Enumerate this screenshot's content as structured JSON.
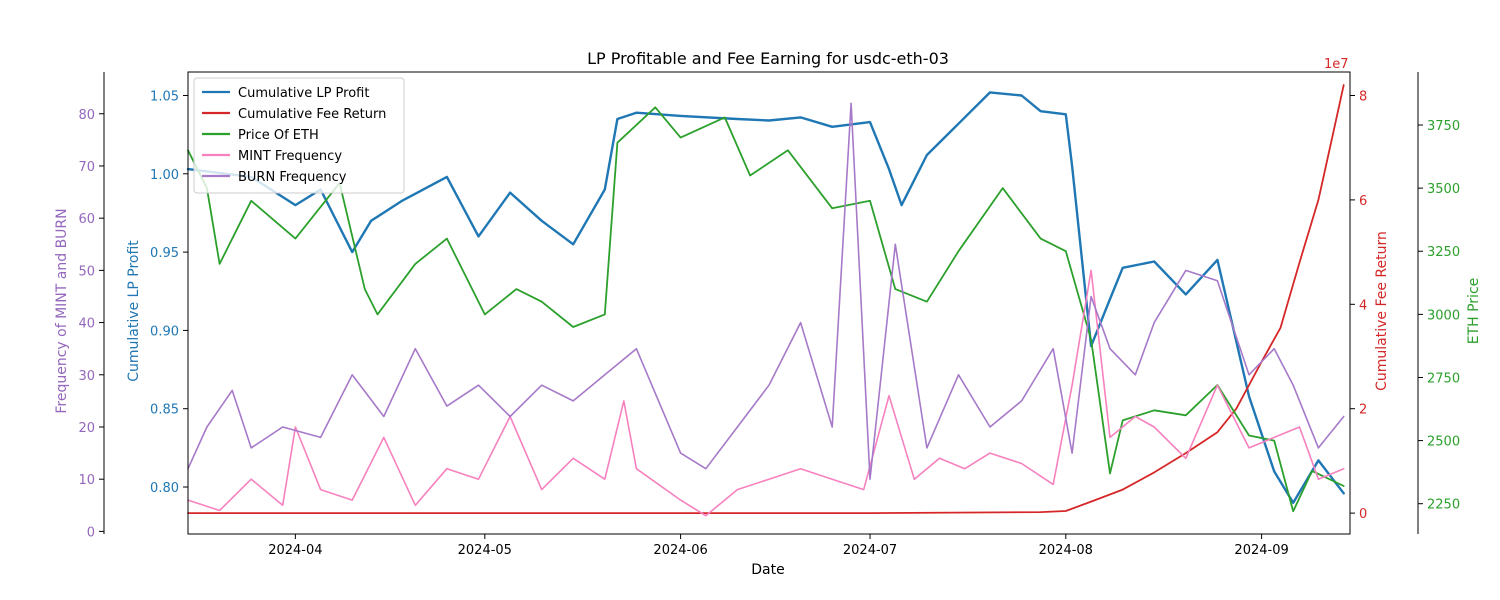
{
  "chart_data": {
    "type": "line",
    "title": "LP Profitable and Fee Earning for usdc-eth-03",
    "xlabel": "Date",
    "x_ticks": [
      "2024-04",
      "2024-05",
      "2024-06",
      "2024-07",
      "2024-08",
      "2024-09"
    ],
    "x_range": [
      "2024-03-15",
      "2024-09-15"
    ],
    "axes": {
      "lp": {
        "label": "Cumulative LP Profit",
        "color": "#1f77b4",
        "range": [
          0.77,
          1.065
        ],
        "ticks": [
          "0.80",
          "0.85",
          "0.90",
          "0.95",
          "1.00",
          "1.05"
        ]
      },
      "freq": {
        "label": "Frequency of MINT and BURN",
        "color": "#9467bd",
        "range": [
          -0.5,
          88
        ],
        "ticks": [
          "0",
          "10",
          "20",
          "30",
          "40",
          "50",
          "60",
          "70",
          "80"
        ]
      },
      "fee": {
        "label": "Cumulative Fee Return",
        "color": "#d62728",
        "range": [
          -4000000,
          84500000
        ],
        "ticks": [
          "0",
          "2",
          "4",
          "6",
          "8"
        ],
        "offset_label": "1e7"
      },
      "eth": {
        "label": "ETH Price",
        "color": "#2ca02c",
        "range": [
          2130,
          3960
        ],
        "ticks": [
          "2250",
          "2500",
          "2750",
          "3000",
          "3250",
          "3500",
          "3750"
        ]
      }
    },
    "legend_position": "upper left",
    "series": [
      {
        "name": "Cumulative LP Profit",
        "color": "#1f77b4",
        "axis": "lp",
        "x": [
          "2024-03-15",
          "2024-03-25",
          "2024-04-01",
          "2024-04-05",
          "2024-04-10",
          "2024-04-13",
          "2024-04-18",
          "2024-04-25",
          "2024-04-30",
          "2024-05-05",
          "2024-05-10",
          "2024-05-15",
          "2024-05-20",
          "2024-05-22",
          "2024-05-25",
          "2024-06-01",
          "2024-06-10",
          "2024-06-15",
          "2024-06-20",
          "2024-06-25",
          "2024-07-01",
          "2024-07-04",
          "2024-07-06",
          "2024-07-10",
          "2024-07-15",
          "2024-07-20",
          "2024-07-25",
          "2024-07-28",
          "2024-08-01",
          "2024-08-02",
          "2024-08-05",
          "2024-08-08",
          "2024-08-10",
          "2024-08-15",
          "2024-08-20",
          "2024-08-25",
          "2024-08-30",
          "2024-09-03",
          "2024-09-06",
          "2024-09-10",
          "2024-09-14"
        ],
        "values": [
          1.003,
          0.998,
          0.98,
          0.99,
          0.95,
          0.97,
          0.983,
          0.998,
          0.96,
          0.988,
          0.97,
          0.955,
          0.99,
          1.035,
          1.039,
          1.037,
          1.035,
          1.034,
          1.036,
          1.03,
          1.033,
          1.003,
          0.98,
          1.012,
          1.032,
          1.052,
          1.05,
          1.04,
          1.038,
          1.005,
          0.89,
          0.92,
          0.94,
          0.944,
          0.923,
          0.945,
          0.858,
          0.81,
          0.79,
          0.817,
          0.796
        ]
      },
      {
        "name": "Cumulative Fee Return",
        "color": "#d62728",
        "axis": "fee",
        "x": [
          "2024-03-15",
          "2024-07-01",
          "2024-07-28",
          "2024-08-01",
          "2024-08-05",
          "2024-08-10",
          "2024-08-15",
          "2024-08-20",
          "2024-08-25",
          "2024-08-28",
          "2024-09-01",
          "2024-09-04",
          "2024-09-07",
          "2024-09-10",
          "2024-09-12",
          "2024-09-14"
        ],
        "values": [
          0,
          0,
          200000,
          400000,
          2200000,
          4500000,
          7800000,
          11500000,
          15500000,
          20000000,
          29000000,
          35500000,
          48000000,
          60000000,
          71000000,
          82000000
        ]
      },
      {
        "name": "Price Of ETH",
        "color": "#2ca02c",
        "axis": "eth",
        "x": [
          "2024-03-15",
          "2024-03-18",
          "2024-03-20",
          "2024-03-25",
          "2024-04-01",
          "2024-04-08",
          "2024-04-12",
          "2024-04-14",
          "2024-04-20",
          "2024-04-25",
          "2024-05-01",
          "2024-05-06",
          "2024-05-10",
          "2024-05-15",
          "2024-05-20",
          "2024-05-22",
          "2024-05-28",
          "2024-06-01",
          "2024-06-08",
          "2024-06-12",
          "2024-06-18",
          "2024-06-25",
          "2024-07-01",
          "2024-07-05",
          "2024-07-10",
          "2024-07-15",
          "2024-07-22",
          "2024-07-28",
          "2024-08-01",
          "2024-08-05",
          "2024-08-08",
          "2024-08-10",
          "2024-08-15",
          "2024-08-20",
          "2024-08-25",
          "2024-08-30",
          "2024-09-03",
          "2024-09-06",
          "2024-09-09",
          "2024-09-14"
        ],
        "values": [
          3650,
          3500,
          3200,
          3450,
          3300,
          3520,
          3100,
          3000,
          3200,
          3300,
          3000,
          3100,
          3050,
          2950,
          3000,
          3680,
          3820,
          3700,
          3780,
          3550,
          3650,
          3420,
          3450,
          3100,
          3050,
          3250,
          3500,
          3300,
          3250,
          2900,
          2370,
          2580,
          2620,
          2600,
          2720,
          2520,
          2500,
          2220,
          2380,
          2320
        ]
      },
      {
        "name": "MINT Frequency",
        "color": "#f781bf",
        "axis": "freq",
        "x": [
          "2024-03-15",
          "2024-03-20",
          "2024-03-25",
          "2024-03-30",
          "2024-04-01",
          "2024-04-05",
          "2024-04-10",
          "2024-04-15",
          "2024-04-20",
          "2024-04-25",
          "2024-04-30",
          "2024-05-05",
          "2024-05-10",
          "2024-05-15",
          "2024-05-20",
          "2024-05-23",
          "2024-05-25",
          "2024-06-01",
          "2024-06-05",
          "2024-06-10",
          "2024-06-15",
          "2024-06-20",
          "2024-06-25",
          "2024-06-30",
          "2024-07-04",
          "2024-07-08",
          "2024-07-12",
          "2024-07-16",
          "2024-07-20",
          "2024-07-25",
          "2024-07-30",
          "2024-08-02",
          "2024-08-05",
          "2024-08-08",
          "2024-08-12",
          "2024-08-15",
          "2024-08-20",
          "2024-08-25",
          "2024-08-30",
          "2024-09-03",
          "2024-09-07",
          "2024-09-10",
          "2024-09-14"
        ],
        "values": [
          6,
          4,
          10,
          5,
          20,
          8,
          6,
          18,
          5,
          12,
          10,
          22,
          8,
          14,
          10,
          25,
          12,
          6,
          3,
          8,
          10,
          12,
          10,
          8,
          26,
          10,
          14,
          12,
          15,
          13,
          9,
          28,
          50,
          18,
          22,
          20,
          14,
          28,
          16,
          18,
          20,
          10,
          12
        ]
      },
      {
        "name": "BURN Frequency",
        "color": "#a679c9",
        "axis": "freq",
        "x": [
          "2024-03-15",
          "2024-03-18",
          "2024-03-22",
          "2024-03-25",
          "2024-03-30",
          "2024-04-05",
          "2024-04-10",
          "2024-04-15",
          "2024-04-20",
          "2024-04-25",
          "2024-04-30",
          "2024-05-05",
          "2024-05-10",
          "2024-05-15",
          "2024-05-20",
          "2024-05-25",
          "2024-06-01",
          "2024-06-05",
          "2024-06-10",
          "2024-06-15",
          "2024-06-20",
          "2024-06-25",
          "2024-06-28",
          "2024-07-01",
          "2024-07-05",
          "2024-07-10",
          "2024-07-15",
          "2024-07-20",
          "2024-07-25",
          "2024-07-30",
          "2024-08-02",
          "2024-08-05",
          "2024-08-08",
          "2024-08-12",
          "2024-08-15",
          "2024-08-20",
          "2024-08-25",
          "2024-08-30",
          "2024-09-03",
          "2024-09-06",
          "2024-09-10",
          "2024-09-14"
        ],
        "values": [
          12,
          20,
          27,
          16,
          20,
          18,
          30,
          22,
          35,
          24,
          28,
          22,
          28,
          25,
          30,
          35,
          15,
          12,
          20,
          28,
          40,
          20,
          82,
          10,
          55,
          16,
          30,
          20,
          25,
          35,
          15,
          45,
          35,
          30,
          40,
          50,
          48,
          30,
          35,
          28,
          16,
          22
        ]
      }
    ]
  }
}
